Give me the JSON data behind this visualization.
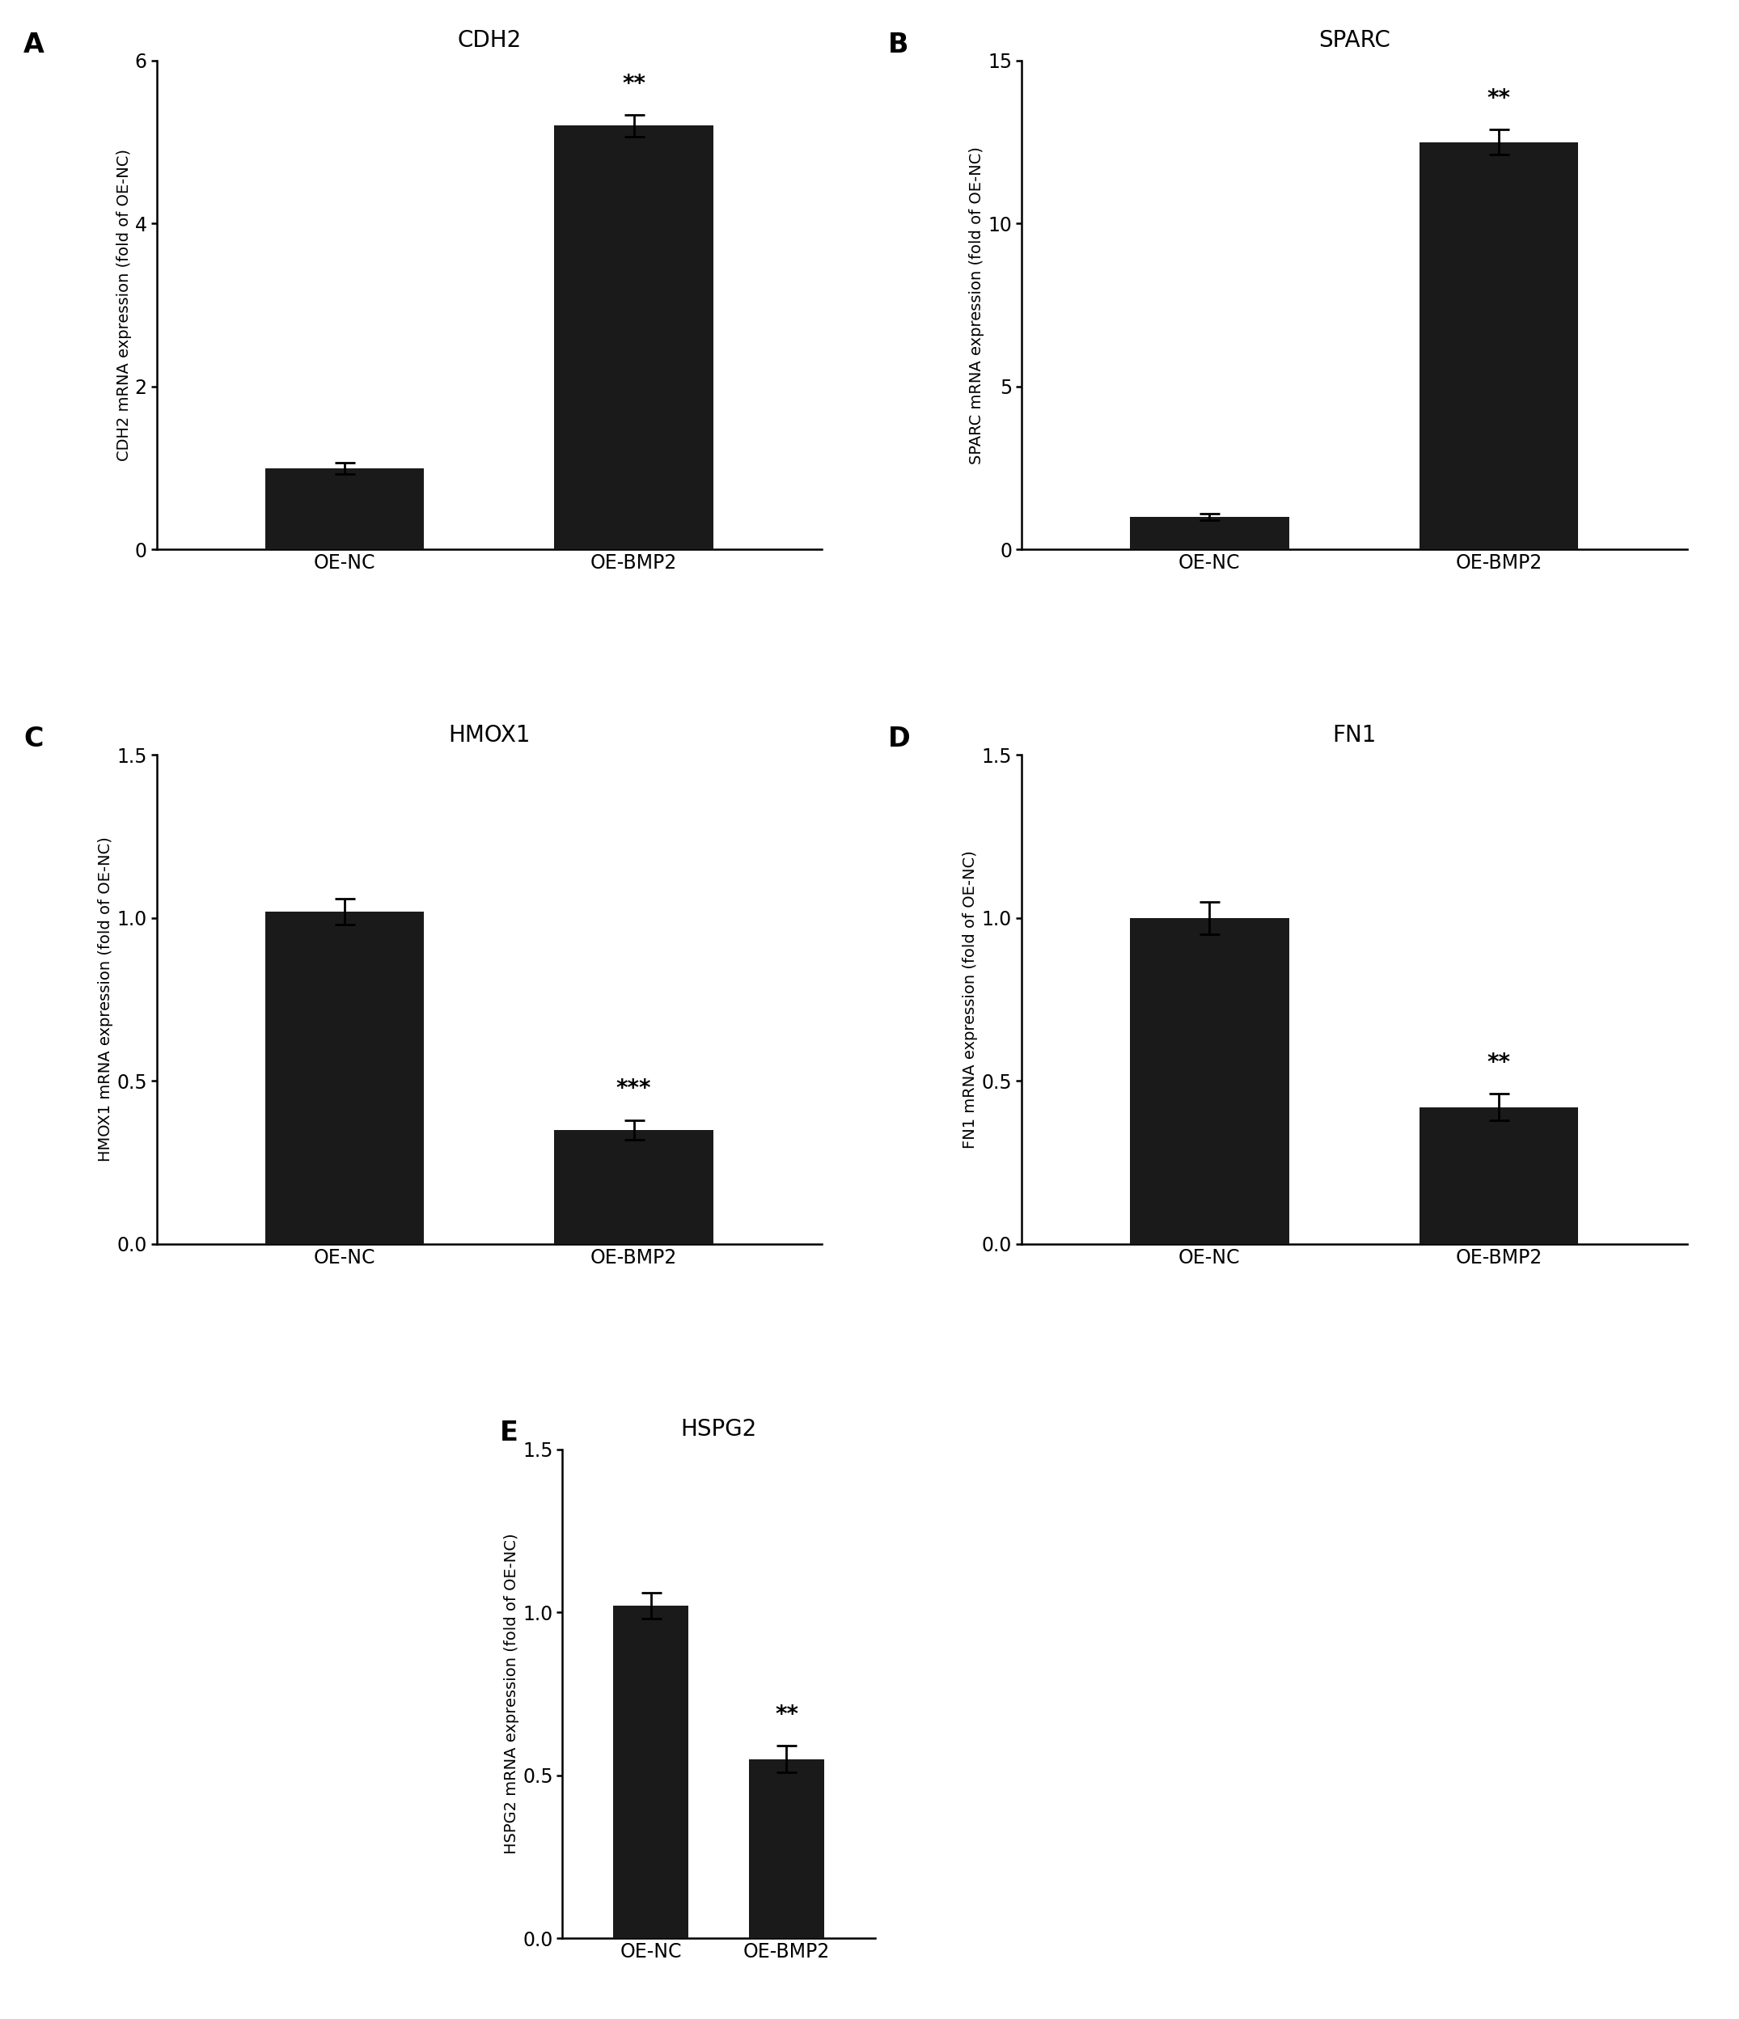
{
  "panels": [
    {
      "label": "A",
      "title": "CDH2",
      "ylabel": "CDH2 mRNA expression (fold of OE-NC)",
      "categories": [
        "OE-NC",
        "OE-BMP2"
      ],
      "values": [
        1.0,
        5.2
      ],
      "errors": [
        0.07,
        0.13
      ],
      "ylim": [
        0,
        6
      ],
      "yticks": [
        0,
        2,
        4,
        6
      ],
      "ytick_labels": [
        "0",
        "2",
        "4",
        "6"
      ],
      "significance": [
        "",
        "**"
      ],
      "sig_idx": 1
    },
    {
      "label": "B",
      "title": "SPARC",
      "ylabel": "SPARC mRNA expression (fold of OE-NC)",
      "categories": [
        "OE-NC",
        "OE-BMP2"
      ],
      "values": [
        1.0,
        12.5
      ],
      "errors": [
        0.1,
        0.38
      ],
      "ylim": [
        0,
        15
      ],
      "yticks": [
        0,
        5,
        10,
        15
      ],
      "ytick_labels": [
        "0",
        "5",
        "10",
        "15"
      ],
      "significance": [
        "",
        "**"
      ],
      "sig_idx": 1
    },
    {
      "label": "C",
      "title": "HMOX1",
      "ylabel": "HMOX1 mRNA expression (fold of OE-NC)",
      "categories": [
        "OE-NC",
        "OE-BMP2"
      ],
      "values": [
        1.02,
        0.35
      ],
      "errors": [
        0.04,
        0.03
      ],
      "ylim": [
        0,
        1.5
      ],
      "yticks": [
        0.0,
        0.5,
        1.0,
        1.5
      ],
      "ytick_labels": [
        "0.0",
        "0.5",
        "1.0",
        "1.5"
      ],
      "significance": [
        "",
        "***"
      ],
      "sig_idx": 1
    },
    {
      "label": "D",
      "title": "FN1",
      "ylabel": "FN1 mRNA expression (fold of OE-NC)",
      "categories": [
        "OE-NC",
        "OE-BMP2"
      ],
      "values": [
        1.0,
        0.42
      ],
      "errors": [
        0.05,
        0.04
      ],
      "ylim": [
        0,
        1.5
      ],
      "yticks": [
        0.0,
        0.5,
        1.0,
        1.5
      ],
      "ytick_labels": [
        "0.0",
        "0.5",
        "1.0",
        "1.5"
      ],
      "significance": [
        "",
        "**"
      ],
      "sig_idx": 1
    },
    {
      "label": "E",
      "title": "HSPG2",
      "ylabel": "HSPG2 mRNA expression (fold of OE-NC)",
      "categories": [
        "OE-NC",
        "OE-BMP2"
      ],
      "values": [
        1.02,
        0.55
      ],
      "errors": [
        0.04,
        0.04
      ],
      "ylim": [
        0,
        1.5
      ],
      "yticks": [
        0.0,
        0.5,
        1.0,
        1.5
      ],
      "ytick_labels": [
        "0.0",
        "0.5",
        "1.0",
        "1.5"
      ],
      "significance": [
        "",
        "**"
      ],
      "sig_idx": 1
    }
  ],
  "bar_color": "#1a1a1a",
  "bar_width": 0.55,
  "background_color": "#ffffff",
  "panel_label_fontsize": 24,
  "title_fontsize": 20,
  "tick_fontsize": 17,
  "ylabel_fontsize": 14,
  "xtick_fontsize": 17,
  "sig_fontsize": 20
}
